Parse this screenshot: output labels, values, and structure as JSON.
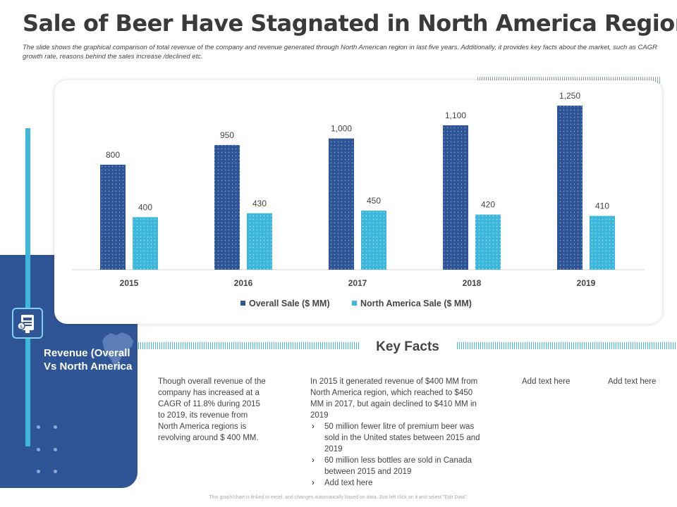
{
  "header": {
    "title": "Sale of Beer Have Stagnated in North America Region",
    "subtitle": "The slide shows the graphical comparison of total revenue of the company and revenue generated through North American region in last five years. Additionally, it provides key facts about the market, such as CAGR growth rate, reasons behind the sales increase /declined etc."
  },
  "panel": {
    "label": "Revenue (Overall Vs North America",
    "icon": "beer-dispenser-icon",
    "map_icon": "north-america-map-icon"
  },
  "colors": {
    "overall": "#2f5597",
    "north_america": "#3db8dc",
    "panel": "#2f5597"
  },
  "chart_data": {
    "type": "bar",
    "categories": [
      "2015",
      "2016",
      "2017",
      "2018",
      "2019"
    ],
    "series": [
      {
        "name": "Overall Sale ($ MM)",
        "values": [
          800,
          950,
          1000,
          1100,
          1250
        ],
        "labels": [
          "800",
          "950",
          "1,000",
          "1,100",
          "1,250"
        ]
      },
      {
        "name": "North America Sale ($ MM)",
        "values": [
          400,
          430,
          450,
          420,
          410
        ],
        "labels": [
          "400",
          "430",
          "450",
          "420",
          "410"
        ]
      }
    ],
    "ylim": [
      0,
      1400
    ],
    "legend": "bottom",
    "grid": false
  },
  "key_facts": {
    "title": "Key Facts",
    "col1": "Though overall revenue of the company has increased at a CAGR of 11.8% during 2015 to 2019, its revenue from North America regions is revolving around $ 400 MM.",
    "col2_intro": "In 2015 it generated revenue of $400 MM from North America region, which reached to $450 MM in 2017, but again declined to $410 MM in 2019",
    "col2_bullets": [
      "50 million fewer litre of premium beer was sold in the United states between 2015 and 2019",
      "60 million less bottles are sold in Canada between 2015 and 2019",
      "Add text here"
    ],
    "col3": "Add text here",
    "col4": "Add text here"
  },
  "footer": "This graph/chart is linked to excel, and changes automatically based on data. Just left click on it and select \"Edit Data\"."
}
